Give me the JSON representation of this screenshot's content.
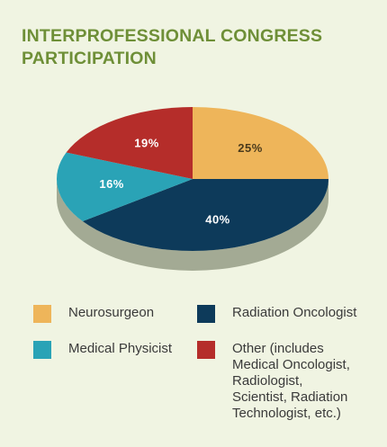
{
  "title": {
    "line1": "INTERPROFESSIONAL CONGRESS",
    "line2": "PARTICIPATION"
  },
  "chart_data": {
    "type": "pie",
    "slices": [
      {
        "label": "Neurosurgeon",
        "value": 25,
        "display": "25%",
        "color": "#eeb55a",
        "label_color": "#4a3a1c"
      },
      {
        "label": "Radiation Oncologist",
        "value": 40,
        "display": "40%",
        "color": "#0d3a5a",
        "label_color": "#ffffff"
      },
      {
        "label": "Medical Physicist",
        "value": 16,
        "display": "16%",
        "color": "#2aa3b6",
        "label_color": "#ffffff"
      },
      {
        "label": "Other",
        "value": 19,
        "display": "19%",
        "color": "#b52d2a",
        "label_color": "#ffffff"
      }
    ],
    "side_color": "#a3aa94",
    "legend_placement": "bottom"
  },
  "legend": {
    "neurosurgeon": {
      "lines": [
        "Neurosurgeon"
      ],
      "color": "#eeb55a"
    },
    "radiation_oncologist": {
      "lines": [
        "Radiation Oncologist"
      ],
      "color": "#0d3a5a"
    },
    "medical_physicist": {
      "lines": [
        "Medical Physicist"
      ],
      "color": "#2aa3b6"
    },
    "other": {
      "lines": [
        "Other (includes",
        "Medical Oncologist,",
        "Radiologist,",
        "Scientist, Radiation",
        "Technologist, etc.)"
      ],
      "color": "#b52d2a"
    }
  }
}
